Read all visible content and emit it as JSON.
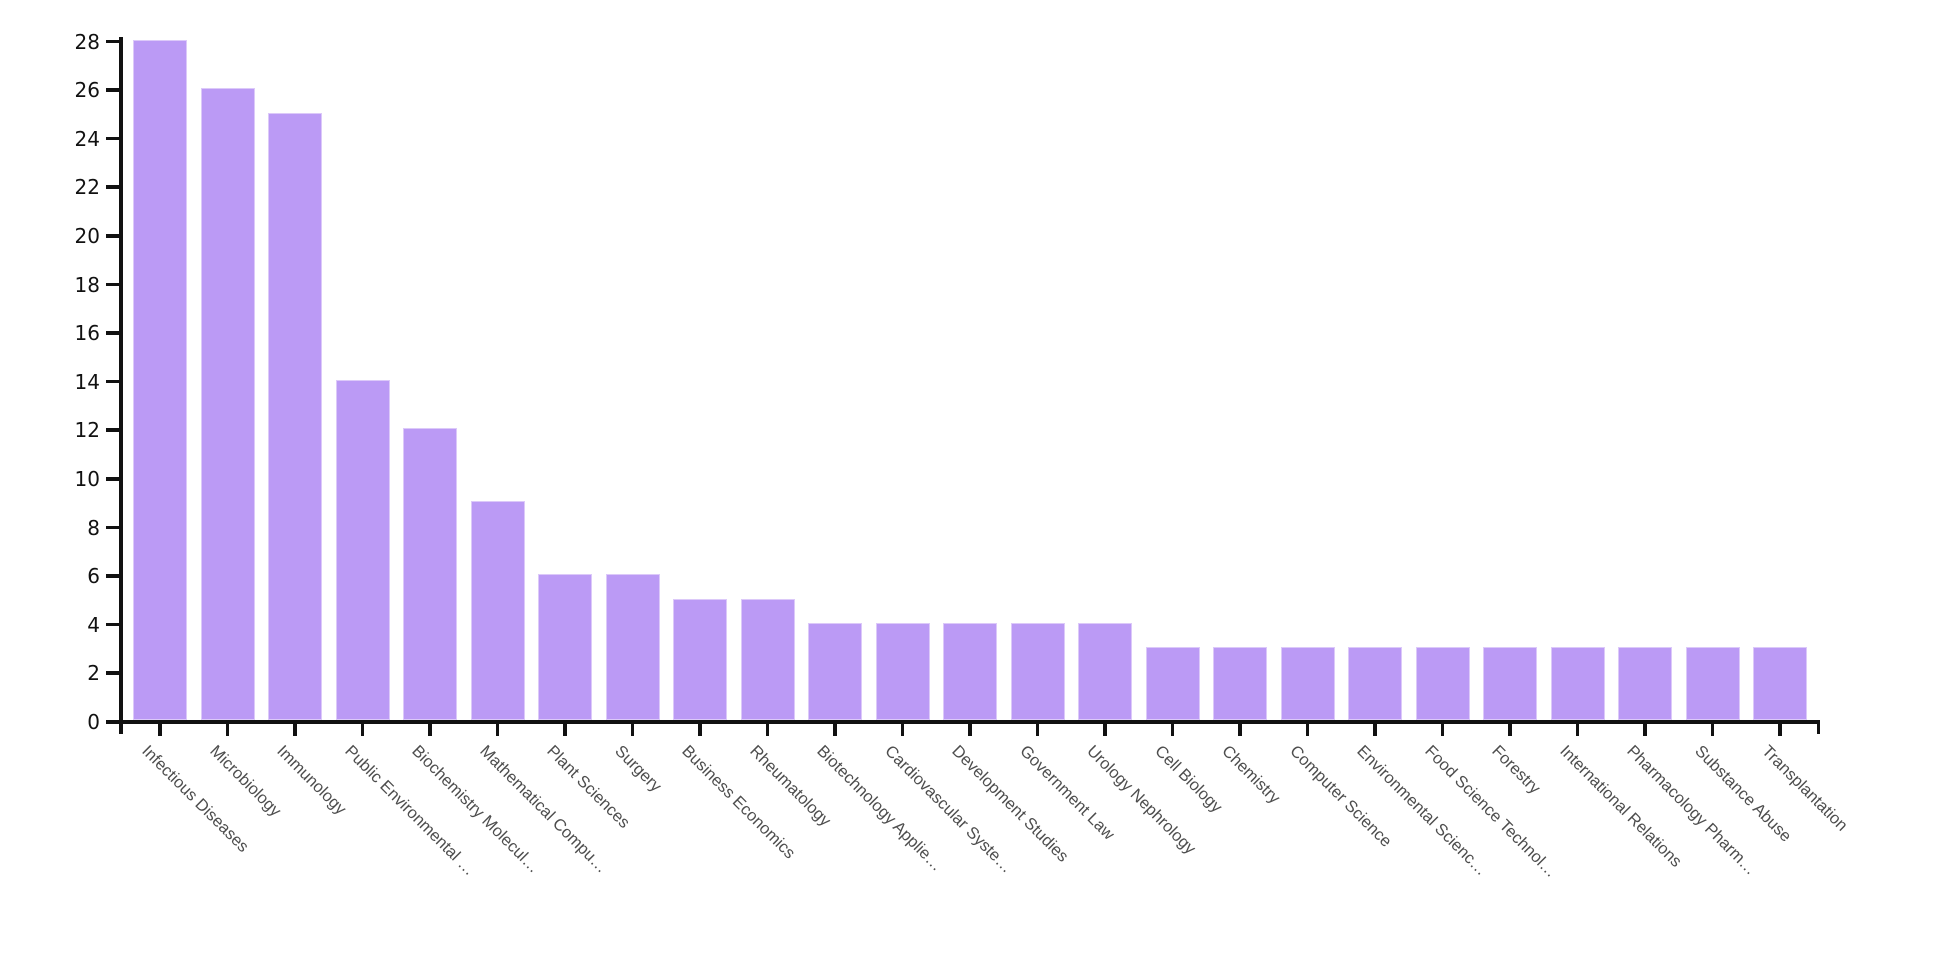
{
  "chart_data": {
    "type": "bar",
    "title": "",
    "xlabel": "",
    "ylabel": "",
    "categories": [
      "Infectious Diseases",
      "Microbiology",
      "Immunology",
      "Public Environmental …",
      "Biochemistry Molecul…",
      "Mathematical Compu…",
      "Plant Sciences",
      "Surgery",
      "Business Economics",
      "Rheumatology",
      "Biotechnology Applie…",
      "Cardiovascular Syste…",
      "Development Studies",
      "Government Law",
      "Urology Nephrology",
      "Cell Biology",
      "Chemistry",
      "Computer Science",
      "Environmental Scienc…",
      "Food Science Technol…",
      "Forestry",
      "International Relations",
      "Pharmacology Pharm…",
      "Substance Abuse",
      "Transplantation"
    ],
    "values": [
      28,
      26,
      25,
      14,
      12,
      9,
      6,
      6,
      5,
      5,
      4,
      4,
      4,
      4,
      4,
      3,
      3,
      3,
      3,
      3,
      3,
      3,
      3,
      3,
      3
    ],
    "yticks": [
      0,
      2,
      4,
      6,
      8,
      10,
      12,
      14,
      16,
      18,
      20,
      22,
      24,
      26,
      28
    ],
    "ylim": [
      0,
      28
    ],
    "grid": false,
    "legend": null,
    "colors": {
      "bar_fill": "#bb9af5",
      "bar_edge": "#dcc9f9",
      "axis": "#111111",
      "y_tick_label": "#111111",
      "x_tick_label": "#4d4d4d"
    }
  }
}
